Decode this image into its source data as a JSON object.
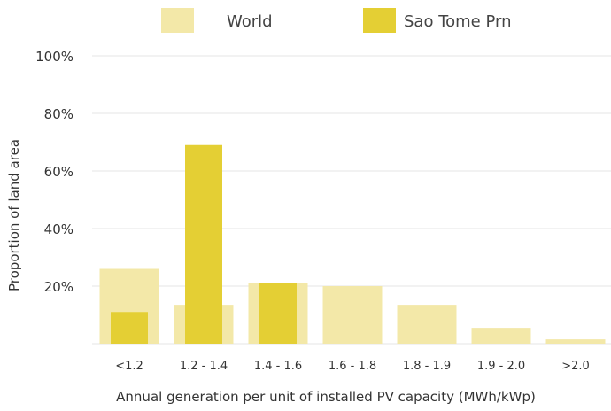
{
  "chart_data": {
    "type": "bar",
    "title": "",
    "xlabel": "Annual generation per unit of installed PV capacity (MWh/kWp)",
    "ylabel": "Proportion of land area",
    "categories": [
      "<1.2",
      "1.2 - 1.4",
      "1.4 - 1.6",
      "1.6 - 1.8",
      "1.8 - 1.9",
      "1.9 - 2.0",
      ">2.0"
    ],
    "ylim": [
      0,
      100
    ],
    "yticks": [
      "20%",
      "40%",
      "60%",
      "80%",
      "100%"
    ],
    "grid": true,
    "legend_position": "top",
    "series": [
      {
        "name": "World",
        "color": "#f3e8a8",
        "values": [
          26,
          13.5,
          21,
          20,
          13.5,
          5.5,
          1.5
        ]
      },
      {
        "name": "Sao Tome Prn",
        "color": "#e4cf34",
        "values": [
          11,
          69,
          21,
          0,
          0,
          0,
          0
        ]
      }
    ]
  }
}
